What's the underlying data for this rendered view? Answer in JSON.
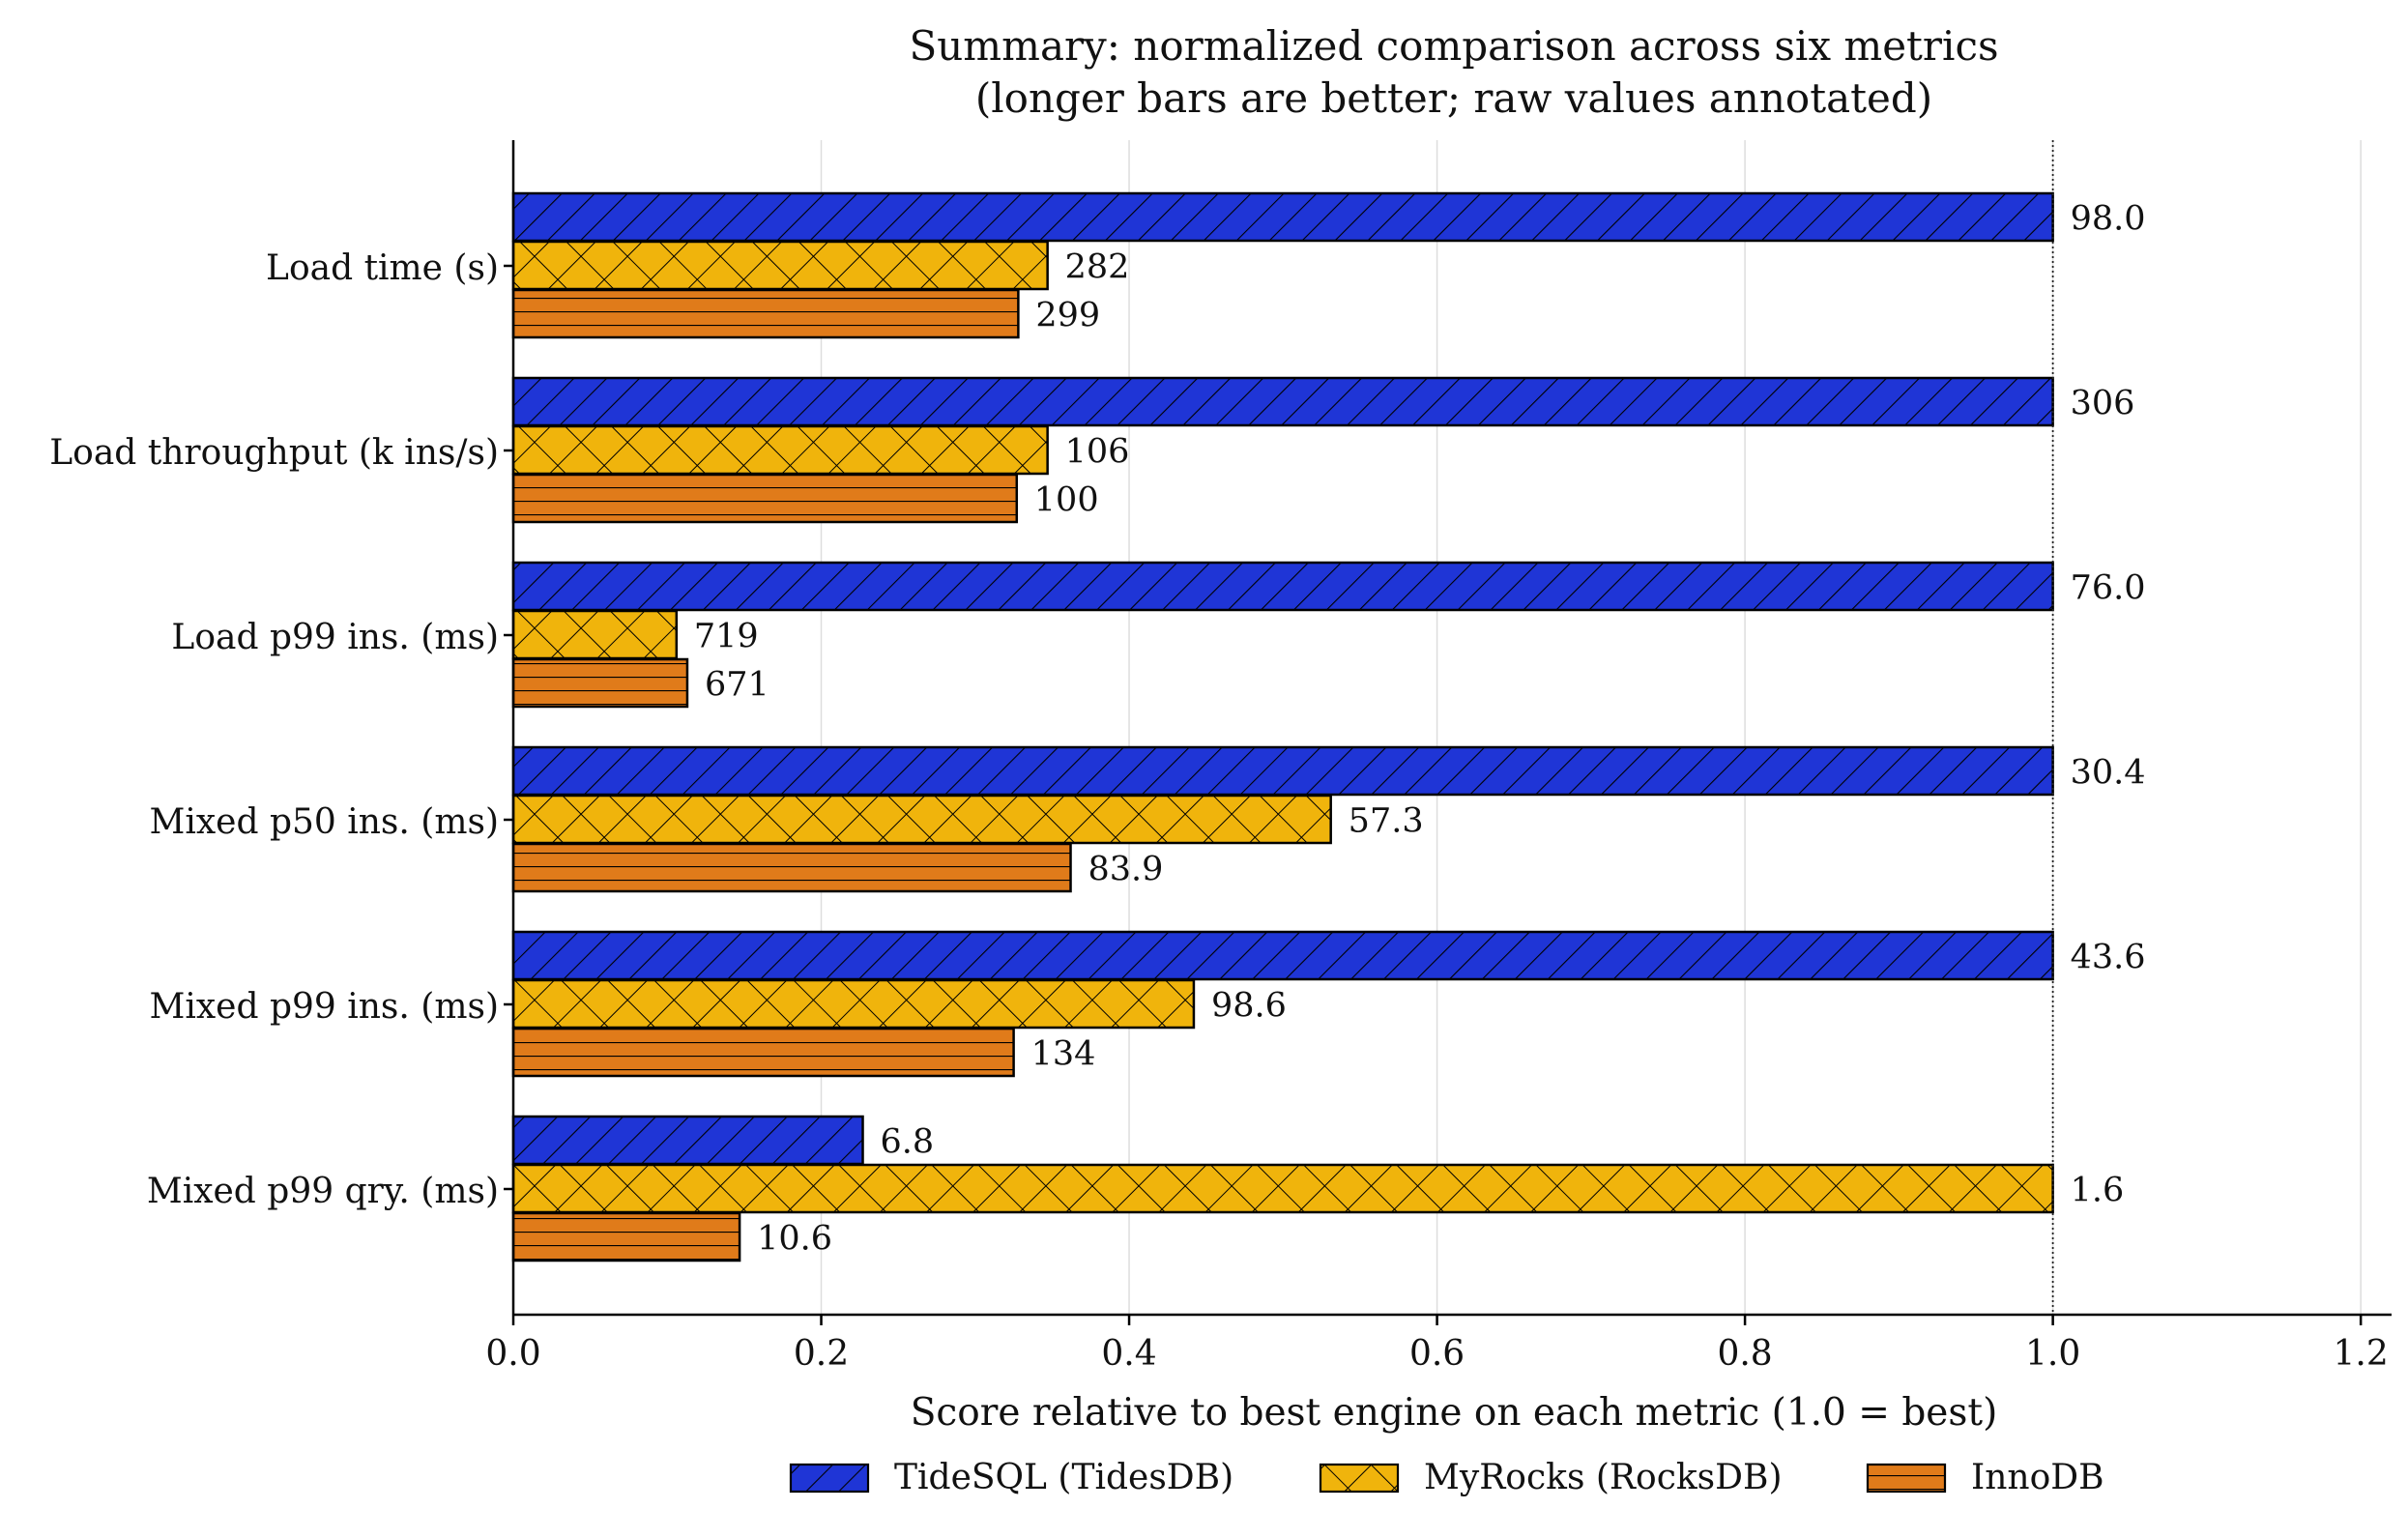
{
  "chart_data": {
    "type": "bar",
    "orientation": "horizontal",
    "title": "Summary: normalized comparison across six metrics",
    "subtitle": "(longer bars are better; raw values annotated)",
    "xlabel": "Score relative to best engine on each metric (1.0 = best)",
    "ylabel": "",
    "xlim": [
      0,
      1.22
    ],
    "xticks": [
      "0.0",
      "0.2",
      "0.4",
      "0.6",
      "0.8",
      "1.0",
      "1.2"
    ],
    "grid": "vertical",
    "reference_line": 1.0,
    "legend_position": "bottom-center",
    "categories": [
      "Load time (s)",
      "Load throughput (k ins/s)",
      "Load p99 ins. (ms)",
      "Mixed p50 ins. (ms)",
      "Mixed p99 ins. (ms)",
      "Mixed p99 qry. (ms)"
    ],
    "series": [
      {
        "name": "TideSQL (TidesDB)",
        "color": "#1f35d6",
        "hatch": "diagonal",
        "values": [
          1.0,
          1.0,
          1.0,
          1.0,
          1.0,
          0.227
        ],
        "labels": [
          "98.0",
          "306",
          "76.0",
          "30.4",
          "43.6",
          "6.8"
        ]
      },
      {
        "name": "MyRocks (RocksDB)",
        "color": "#f0b40c",
        "hatch": "cross",
        "values": [
          0.347,
          0.347,
          0.106,
          0.531,
          0.442,
          1.0
        ],
        "labels": [
          "282",
          "106",
          "719",
          "57.3",
          "98.6",
          "1.6"
        ]
      },
      {
        "name": "InnoDB",
        "color": "#e07b1a",
        "hatch": "horizontal",
        "values": [
          0.328,
          0.327,
          0.113,
          0.362,
          0.325,
          0.147
        ],
        "labels": [
          "299",
          "100",
          "671",
          "83.9",
          "134",
          "10.6"
        ]
      }
    ]
  }
}
